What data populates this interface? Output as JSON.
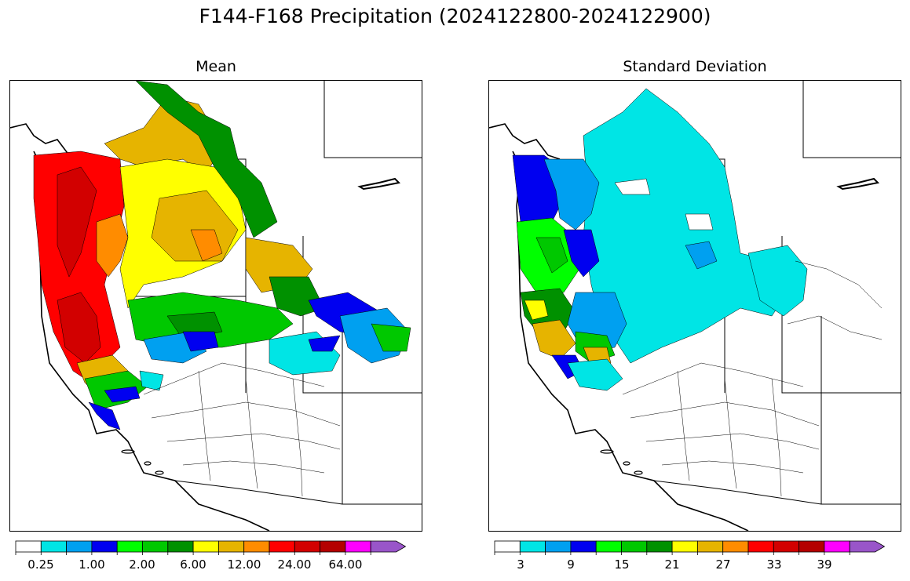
{
  "title": "F144-F168 Precipitation (2024122800-2024122900)",
  "panels": [
    {
      "title": "Mean",
      "colorbar": {
        "colors": [
          "#ffffff",
          "#00e5e5",
          "#00a0f0",
          "#0000f0",
          "#00ff00",
          "#00c800",
          "#009100",
          "#ffff00",
          "#e6b400",
          "#ff8c00",
          "#ff0000",
          "#d20000",
          "#b40000",
          "#ff00ff",
          "#9955c9"
        ],
        "tick_labels": [
          "0.25",
          "1.00",
          "2.00",
          "6.00",
          "12.00",
          "24.00",
          "64.00"
        ],
        "extend": "max"
      }
    },
    {
      "title": "Standard Deviation",
      "colorbar": {
        "colors": [
          "#ffffff",
          "#00e5e5",
          "#00a0f0",
          "#0000f0",
          "#00ff00",
          "#00c800",
          "#009100",
          "#ffff00",
          "#e6b400",
          "#ff8c00",
          "#ff0000",
          "#d20000",
          "#b40000",
          "#ff00ff",
          "#9955c9"
        ],
        "tick_labels": [
          "3",
          "9",
          "15",
          "21",
          "27",
          "33",
          "39"
        ],
        "extend": "max"
      }
    }
  ]
}
